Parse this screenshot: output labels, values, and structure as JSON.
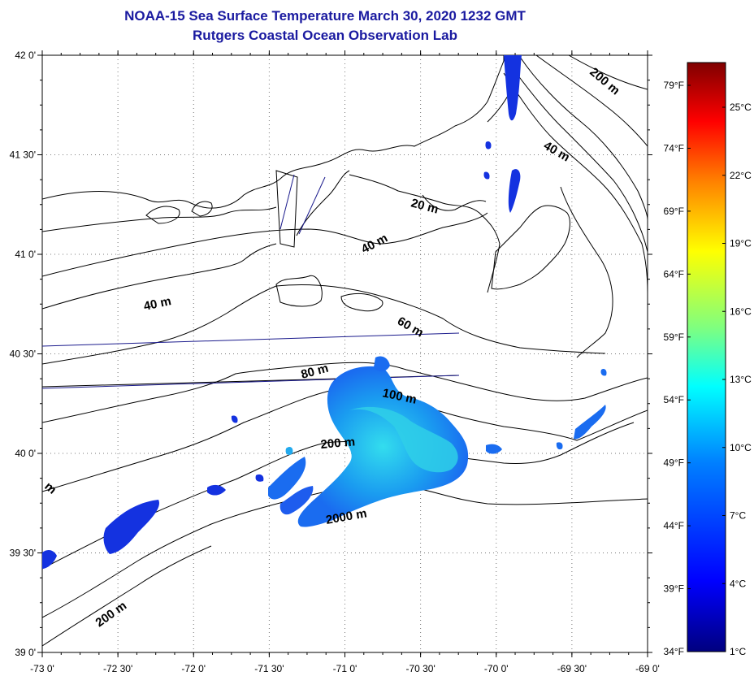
{
  "title": "NOAA-15 Sea Surface Temperature March 30, 2020 1232 GMT",
  "subtitle": "Rutgers Coastal Ocean Observation Lab",
  "map": {
    "lon_range": [
      -73,
      -69
    ],
    "lat_range": [
      39,
      42
    ],
    "lon_ticks": [
      "-73 0'",
      "-72 30'",
      "-72 0'",
      "-71 30'",
      "-71 0'",
      "-70 30'",
      "-70 0'",
      "-69 30'",
      "-69 0'"
    ],
    "lat_ticks": [
      "42 0'",
      "41 30'",
      "41 0'",
      "40 30'",
      "40 0'",
      "39 30'",
      "39 0'"
    ],
    "grid": "dotted",
    "contour_labels": [
      "200 m",
      "40 m",
      "20 m",
      "40 m",
      "40 m",
      "60 m",
      "80 m",
      "100 m",
      "200 m",
      "2000 m",
      "200 m",
      "m"
    ]
  },
  "colorbar": {
    "celsius_labels": [
      "25°C",
      "22°C",
      "19°C",
      "16°C",
      "13°C",
      "10°C",
      "7°C",
      "4°C",
      "1°C"
    ],
    "fahrenheit_labels": [
      "79°F",
      "74°F",
      "69°F",
      "64°F",
      "59°F",
      "54°F",
      "49°F",
      "44°F",
      "39°F",
      "34°F"
    ],
    "colors": [
      "#00007f",
      "#0000ff",
      "#007fff",
      "#00ffff",
      "#7fff7f",
      "#ffff00",
      "#ff7f00",
      "#ff0000",
      "#7f0000"
    ]
  },
  "colors": {
    "title": "#1a1aa0",
    "land_outline": "#000000",
    "track_line": "#1a1a8c"
  }
}
